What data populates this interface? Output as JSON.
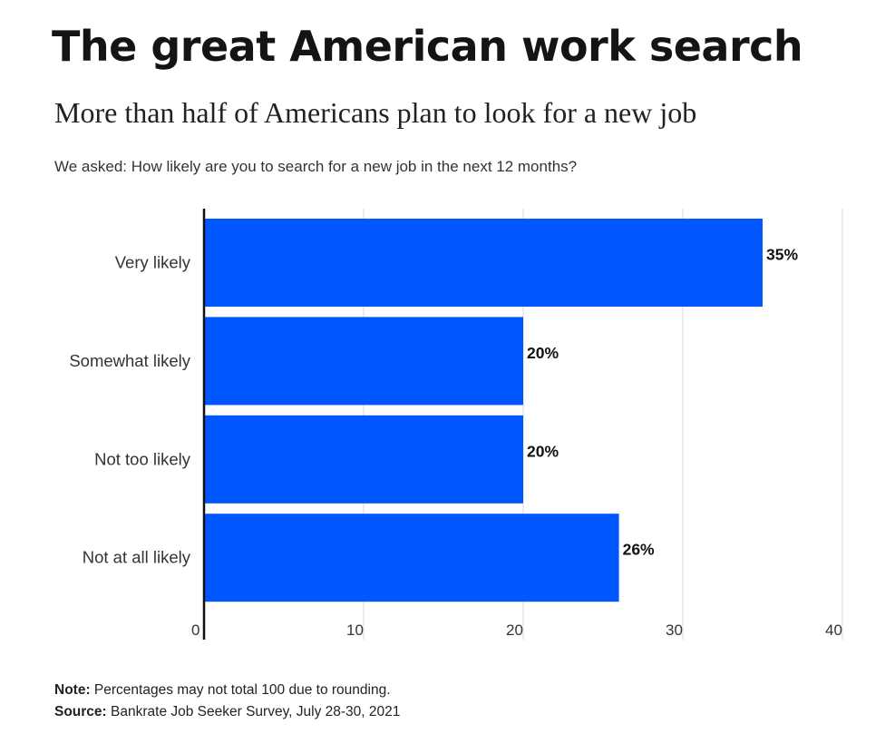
{
  "header": {
    "title": "The great American work search",
    "subtitle": "More than half of Americans plan to look for a new job",
    "question": "We asked: How likely are you to search for a new job in the next 12 months?"
  },
  "footer": {
    "note_label": "Note:",
    "note_text": " Percentages may not total 100 due to rounding.",
    "source_label": "Source:",
    "source_text": " Bankrate Job Seeker Survey, July 28-30, 2021"
  },
  "chart_data": {
    "type": "bar",
    "orientation": "horizontal",
    "categories": [
      "Very likely",
      "Somewhat likely",
      "Not too likely",
      "Not at all likely"
    ],
    "values": [
      35,
      20,
      20,
      26
    ],
    "value_labels": [
      "35%",
      "20%",
      "20%",
      "26%"
    ],
    "xlim": [
      0,
      40
    ],
    "xticks": [
      0,
      10,
      20,
      30,
      40
    ],
    "grid": "vertical",
    "bar_color": "#0157ff"
  }
}
